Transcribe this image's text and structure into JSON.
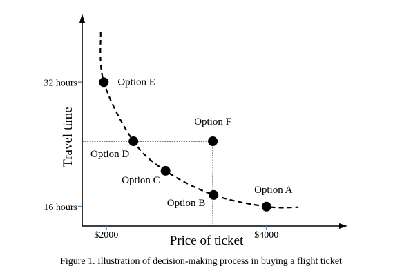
{
  "chart_data": {
    "type": "scatter",
    "title": "",
    "xlabel": "Price of ticket",
    "ylabel": "Travel time",
    "x_ticks": [
      {
        "value": 2000,
        "label": "$2000"
      },
      {
        "value": 4000,
        "label": "$4000"
      }
    ],
    "y_ticks": [
      {
        "value": 32,
        "label": "32 hours"
      },
      {
        "value": 16,
        "label": "16 hours"
      }
    ],
    "xlim": [
      1700,
      4700
    ],
    "ylim": [
      13.5,
      38.5
    ],
    "points": [
      {
        "name": "Option E",
        "x": 1970,
        "y": 32,
        "on_curve": true
      },
      {
        "name": "Option D",
        "x": 2340,
        "y": 24.4,
        "on_curve": true
      },
      {
        "name": "Option C",
        "x": 2740,
        "y": 20.6,
        "on_curve": true
      },
      {
        "name": "Option B",
        "x": 3340,
        "y": 17.5,
        "on_curve": true
      },
      {
        "name": "Option A",
        "x": 4000,
        "y": 16,
        "on_curve": true
      },
      {
        "name": "Option F",
        "x": 3330,
        "y": 24.4,
        "on_curve": false
      }
    ],
    "curve_extent": {
      "x_start": 1930,
      "x_end": 4400
    },
    "reference_lines": [
      {
        "type": "horizontal",
        "y": 24.4,
        "from_x": 1700,
        "to_x": 3330
      },
      {
        "type": "vertical",
        "x": 3330,
        "from_y": 13.5,
        "to_y": 24.4
      }
    ],
    "annotations": [
      {
        "name": "Option E",
        "position": "right"
      },
      {
        "name": "Option D",
        "position": "below-left"
      },
      {
        "name": "Option C",
        "position": "left"
      },
      {
        "name": "Option B",
        "position": "left"
      },
      {
        "name": "Option A",
        "position": "above"
      },
      {
        "name": "Option F",
        "position": "above"
      }
    ],
    "colors": {
      "axis": "#000000",
      "tick": "#5b9bd5",
      "point": "#000000",
      "line": "#000000"
    }
  },
  "caption": "Figure 1. Illustration of decision-making process in buying a flight ticket"
}
